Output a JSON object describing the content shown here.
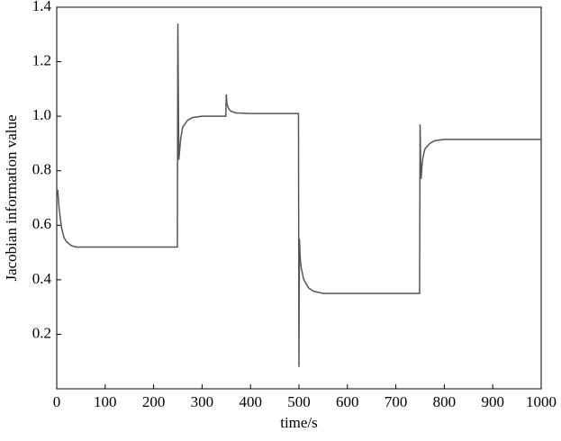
{
  "chart_data": {
    "type": "line",
    "x_label": "time/s",
    "y_label": "Jacobian information value",
    "x": [
      0,
      2,
      5,
      10,
      15,
      20,
      30,
      40,
      60,
      100,
      249,
      250,
      251,
      252,
      254,
      256,
      260,
      270,
      280,
      300,
      349,
      350,
      351,
      353,
      356,
      360,
      370,
      400,
      499,
      500,
      501,
      502,
      503,
      505,
      510,
      520,
      530,
      550,
      600,
      749,
      750,
      751,
      752,
      754,
      756,
      760,
      770,
      780,
      800,
      1000
    ],
    "series": [
      {
        "color": "#555555",
        "values": [
          0.72,
          0.73,
          0.66,
          0.59,
          0.555,
          0.54,
          0.525,
          0.52,
          0.52,
          0.52,
          0.52,
          1.34,
          1.1,
          0.84,
          0.88,
          0.92,
          0.96,
          0.985,
          0.995,
          1.0,
          1.0,
          1.08,
          1.05,
          1.035,
          1.025,
          1.018,
          1.012,
          1.01,
          1.01,
          0.08,
          0.55,
          0.5,
          0.47,
          0.44,
          0.4,
          0.37,
          0.358,
          0.35,
          0.35,
          0.35,
          0.97,
          0.85,
          0.77,
          0.82,
          0.85,
          0.88,
          0.9,
          0.91,
          0.915,
          0.915
        ]
      }
    ],
    "xlim": [
      0,
      1000
    ],
    "xticks": [
      0,
      100,
      200,
      300,
      400,
      500,
      600,
      700,
      800,
      900,
      1000
    ],
    "ylim": [
      0,
      1.4
    ],
    "yticks": [
      0.2,
      0.4,
      0.6,
      0.8,
      {
        "value": 1,
        "label": "1.0"
      },
      1.2,
      1.4
    ],
    "grid": false
  }
}
